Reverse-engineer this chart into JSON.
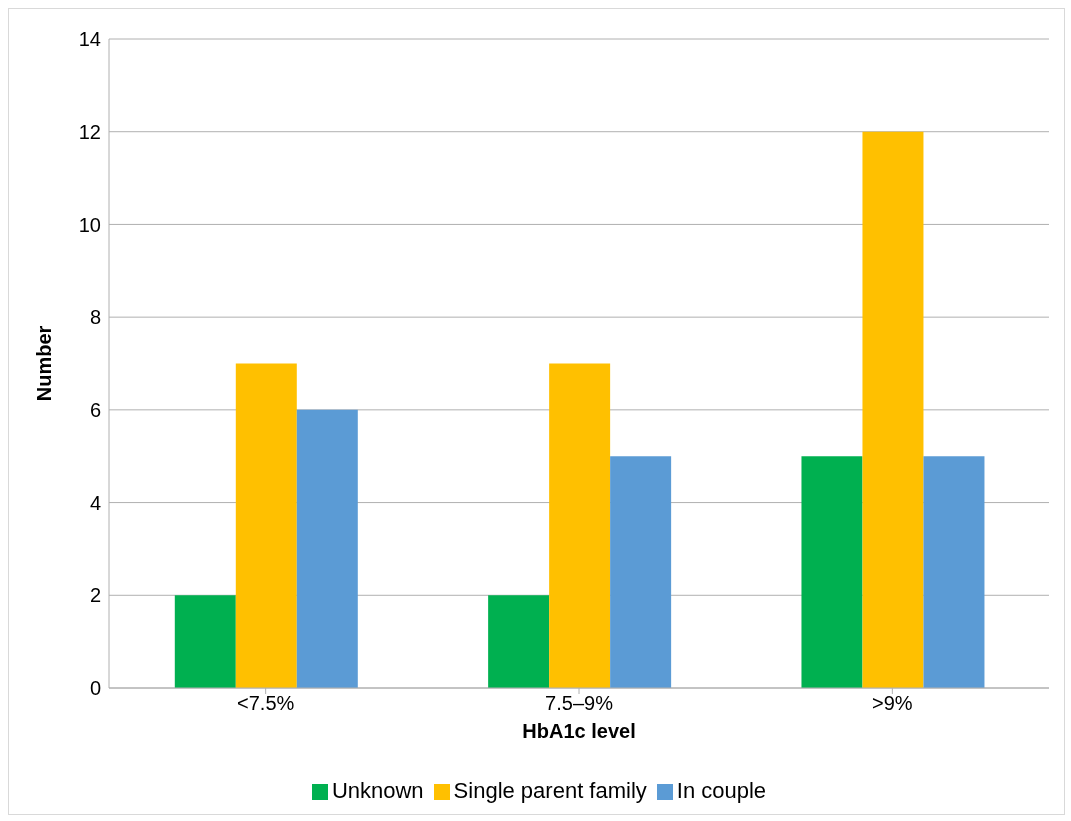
{
  "chart_data": {
    "type": "bar",
    "xlabel": "HbA1c level",
    "ylabel": "Number",
    "categories": [
      "<7.5%",
      "7.5–9%",
      ">9%"
    ],
    "series": [
      {
        "name": "Unknown",
        "color": "#00b050",
        "values": [
          2,
          2,
          5
        ]
      },
      {
        "name": "Single parent family",
        "color": "#ffc000",
        "values": [
          7,
          7,
          12
        ]
      },
      {
        "name": "In couple",
        "color": "#5b9bd5",
        "values": [
          6,
          5,
          5
        ]
      }
    ],
    "ylim": [
      0,
      14
    ],
    "yticks": [
      0,
      2,
      4,
      6,
      8,
      10,
      12,
      14
    ],
    "grid": "y",
    "legend": "bottom"
  }
}
